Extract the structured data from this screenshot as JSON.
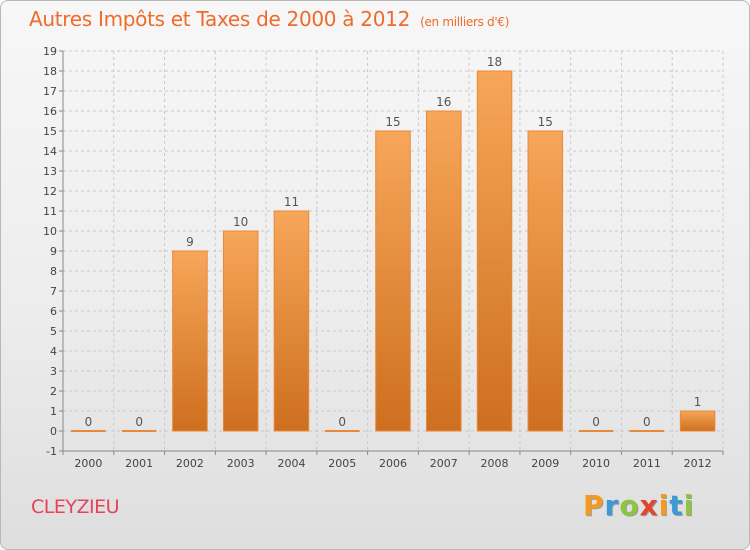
{
  "chart_data": {
    "type": "bar",
    "title": "Autres Impôts et Taxes de 2000 à 2012",
    "subtitle": "(en milliers d'€)",
    "categories": [
      "2000",
      "2001",
      "2002",
      "2003",
      "2004",
      "2005",
      "2006",
      "2007",
      "2008",
      "2009",
      "2010",
      "2011",
      "2012"
    ],
    "values": [
      0,
      0,
      9,
      10,
      11,
      0,
      15,
      16,
      18,
      15,
      0,
      0,
      1
    ],
    "data_labels": [
      "0",
      "0",
      "9",
      "10",
      "11",
      "0",
      "15",
      "16",
      "18",
      "15",
      "0",
      "0",
      "1"
    ],
    "ylim": [
      -1,
      19
    ],
    "yticks": [
      -1,
      0,
      1,
      2,
      3,
      4,
      5,
      6,
      7,
      8,
      9,
      10,
      11,
      12,
      13,
      14,
      15,
      16,
      17,
      18,
      19
    ],
    "grid": true,
    "bar_color_top": "#f7a65a",
    "bar_color_bottom": "#cd6f1e",
    "label_color": "#555555"
  },
  "footer": {
    "town": "CLEYZIEU",
    "brand_letters": [
      "P",
      "r",
      "o",
      "x",
      "i",
      "t",
      "i"
    ],
    "brand_colors": [
      "#f39a1f",
      "#3a9ad9",
      "#8cc63e",
      "#e2452d",
      "#f39a1f",
      "#3a9ad9",
      "#8cc63e"
    ]
  }
}
